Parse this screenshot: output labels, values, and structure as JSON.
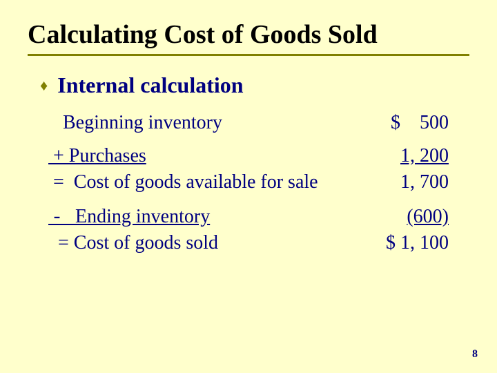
{
  "colors": {
    "background": "#ffffcc",
    "title_text": "#000000",
    "body_text": "#000080",
    "rule": "#808000",
    "bullet": "#808000"
  },
  "typography": {
    "family": "Times New Roman",
    "title_fontsize_pt": 29,
    "bullet_fontsize_pt": 24,
    "row_fontsize_pt": 21,
    "page_num_fontsize_pt": 12
  },
  "title": "Calculating Cost of Goods Sold",
  "bullet": "Internal calculation",
  "rows": {
    "r0": {
      "label": "   Beginning inventory",
      "value": "$    500"
    },
    "r1": {
      "label": " + Purchases",
      "value": "1, 200"
    },
    "r2": {
      "label": " =  Cost of goods available for sale",
      "value": "1, 700"
    },
    "r3": {
      "label_prefix": " - ",
      "label_rest": "  Ending inventory",
      "value": "(600)"
    },
    "r4": {
      "label": "  = Cost of goods sold",
      "value": "$ 1, 100"
    }
  },
  "page_number": "8"
}
